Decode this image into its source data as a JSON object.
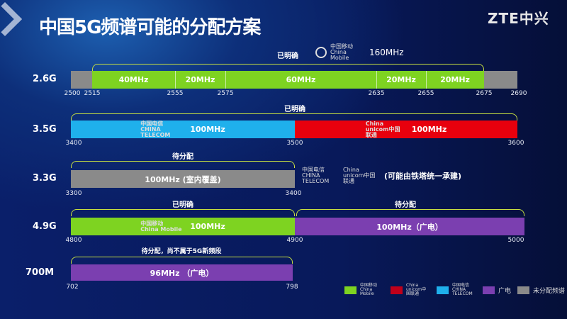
{
  "title": "中国5G频谱可能的分配方案",
  "logo": "ZTE中兴",
  "colors": {
    "mobile": "#7ed321",
    "unicom": "#e8000d",
    "telecom": "#1fb0ec",
    "broadcast": "#7b3fb0",
    "unassigned": "#8a8a8a"
  },
  "band26": {
    "label": "2.6G",
    "note": "已明确",
    "operator": "中国移动 China Mobile",
    "total": "160MHz",
    "segments": [
      "40MHz",
      "20MHz",
      "60MHz",
      "20MHz",
      "20MHz"
    ],
    "ticks": [
      "2500",
      "2515",
      "2555",
      "2575",
      "2635",
      "2655",
      "2675",
      "2690"
    ]
  },
  "band35": {
    "label": "3.5G",
    "note": "已明确",
    "left": "100MHz",
    "left_op": "中国电信 CHINA TELECOM",
    "right": "100MHz",
    "right_op": "China unicom中国联通",
    "ticks": [
      "3400",
      "3500",
      "3600"
    ]
  },
  "band33": {
    "label": "3.3G",
    "note": "待分配",
    "seg": "100MHz (室内覆盖)",
    "ticks": [
      "3300",
      "3400"
    ],
    "side_note": "(可能由铁塔统一承建)",
    "side_ops": [
      "中国电信 CHINA TELECOM",
      "China unicom中国联通"
    ]
  },
  "band49": {
    "label": "4.9G",
    "note_left": "已明确",
    "note_right": "待分配",
    "left": "100MHz",
    "left_op": "中国移动 China Mobile",
    "right": "100MHz（广电）",
    "ticks": [
      "4800",
      "4900",
      "5000"
    ]
  },
  "band700": {
    "label": "700M",
    "note": "待分配，尚不属于5G新频段",
    "seg": "96MHz （广电）",
    "ticks": [
      "702",
      "798"
    ]
  },
  "legend": [
    {
      "label": "中国移动 China Mobile"
    },
    {
      "label": "China unicom中国联通"
    },
    {
      "label": "中国电信 CHINA TELECOM"
    },
    {
      "label": "广电"
    },
    {
      "label": "未分配频谱"
    }
  ]
}
